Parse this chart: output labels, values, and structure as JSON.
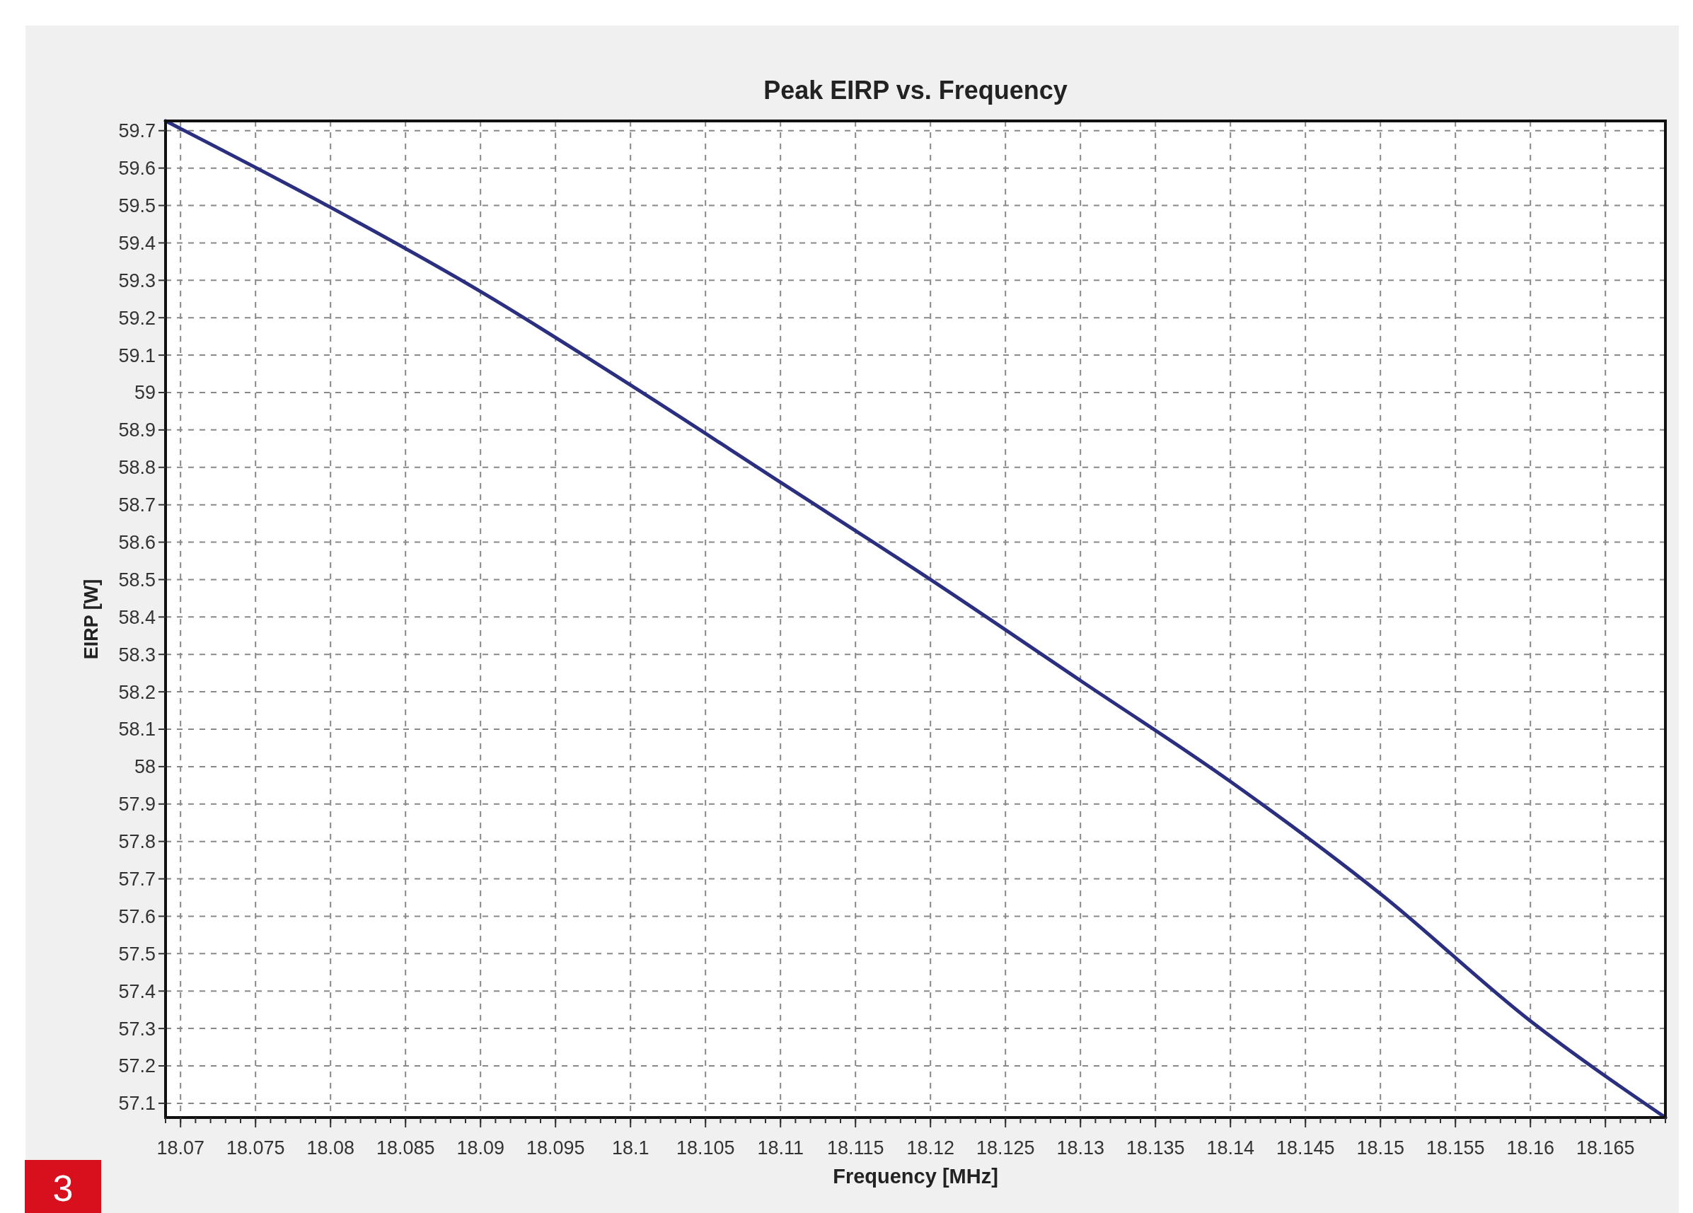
{
  "chart_data": {
    "type": "line",
    "title": "Peak EIRP vs. Frequency",
    "xlabel": "Frequency [MHz]",
    "ylabel": "EIRP [W]",
    "x": [
      18.069,
      18.08,
      18.09,
      18.1,
      18.11,
      18.12,
      18.13,
      18.14,
      18.15,
      18.16,
      18.169
    ],
    "series": [
      {
        "color": "#2b2f7f",
        "values": [
          59.726,
          59.495,
          59.27,
          59.02,
          58.76,
          58.5,
          58.23,
          57.96,
          57.66,
          57.32,
          57.062
        ]
      }
    ],
    "xlim": [
      18.069,
      18.169
    ],
    "xticks": [
      18.07,
      18.075,
      18.08,
      18.085,
      18.09,
      18.095,
      18.1,
      18.105,
      18.11,
      18.115,
      18.12,
      18.125,
      18.13,
      18.135,
      18.14,
      18.145,
      18.15,
      18.155,
      18.16,
      18.165
    ],
    "ylim": [
      57.062,
      59.726
    ],
    "yticks": [
      57.1,
      57.2,
      57.3,
      57.4,
      57.5,
      57.6,
      57.7,
      57.8,
      57.9,
      58,
      58.1,
      58.2,
      58.3,
      58.4,
      58.5,
      58.6,
      58.7,
      58.8,
      58.9,
      59,
      59.1,
      59.2,
      59.3,
      59.4,
      59.5,
      59.6,
      59.7
    ],
    "grid": true,
    "line_style": "solid",
    "marker": "none",
    "annotations": [
      "3"
    ]
  }
}
